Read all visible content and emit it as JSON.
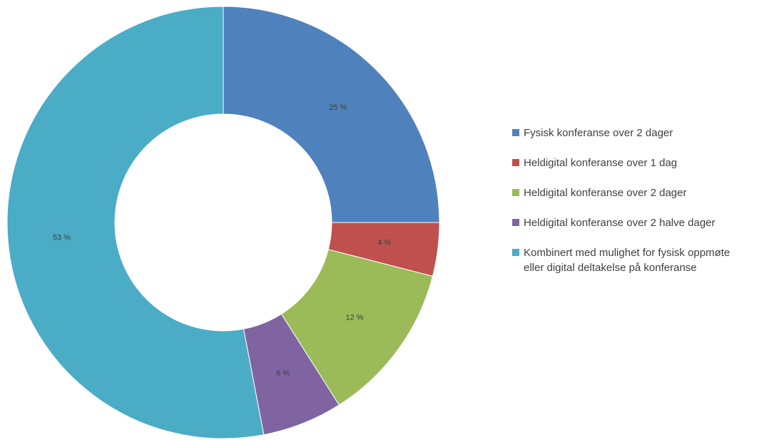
{
  "chart_data": {
    "type": "pie",
    "variant": "donut",
    "title": "",
    "legend_position": "right",
    "slices": [
      {
        "name": "Fysisk konferanse over 2 dager",
        "value": 25,
        "label": "25 %",
        "color": "#4F81BD"
      },
      {
        "name": "Heldigital konferanse over 1 dag",
        "value": 4,
        "label": "4 %",
        "color": "#C0504D"
      },
      {
        "name": "Heldigital konferanse over 2 dager",
        "value": 12,
        "label": "12 %",
        "color": "#9BBB59"
      },
      {
        "name": "Heldigital konferanse over 2 halve dager",
        "value": 6,
        "label": "6 %",
        "color": "#8064A2"
      },
      {
        "name": "Kombinert med mulighet for fysisk oppmøte\neller digital deltakelse på konferanse",
        "value": 53,
        "label": "53 %",
        "color": "#4BACC6"
      }
    ]
  }
}
